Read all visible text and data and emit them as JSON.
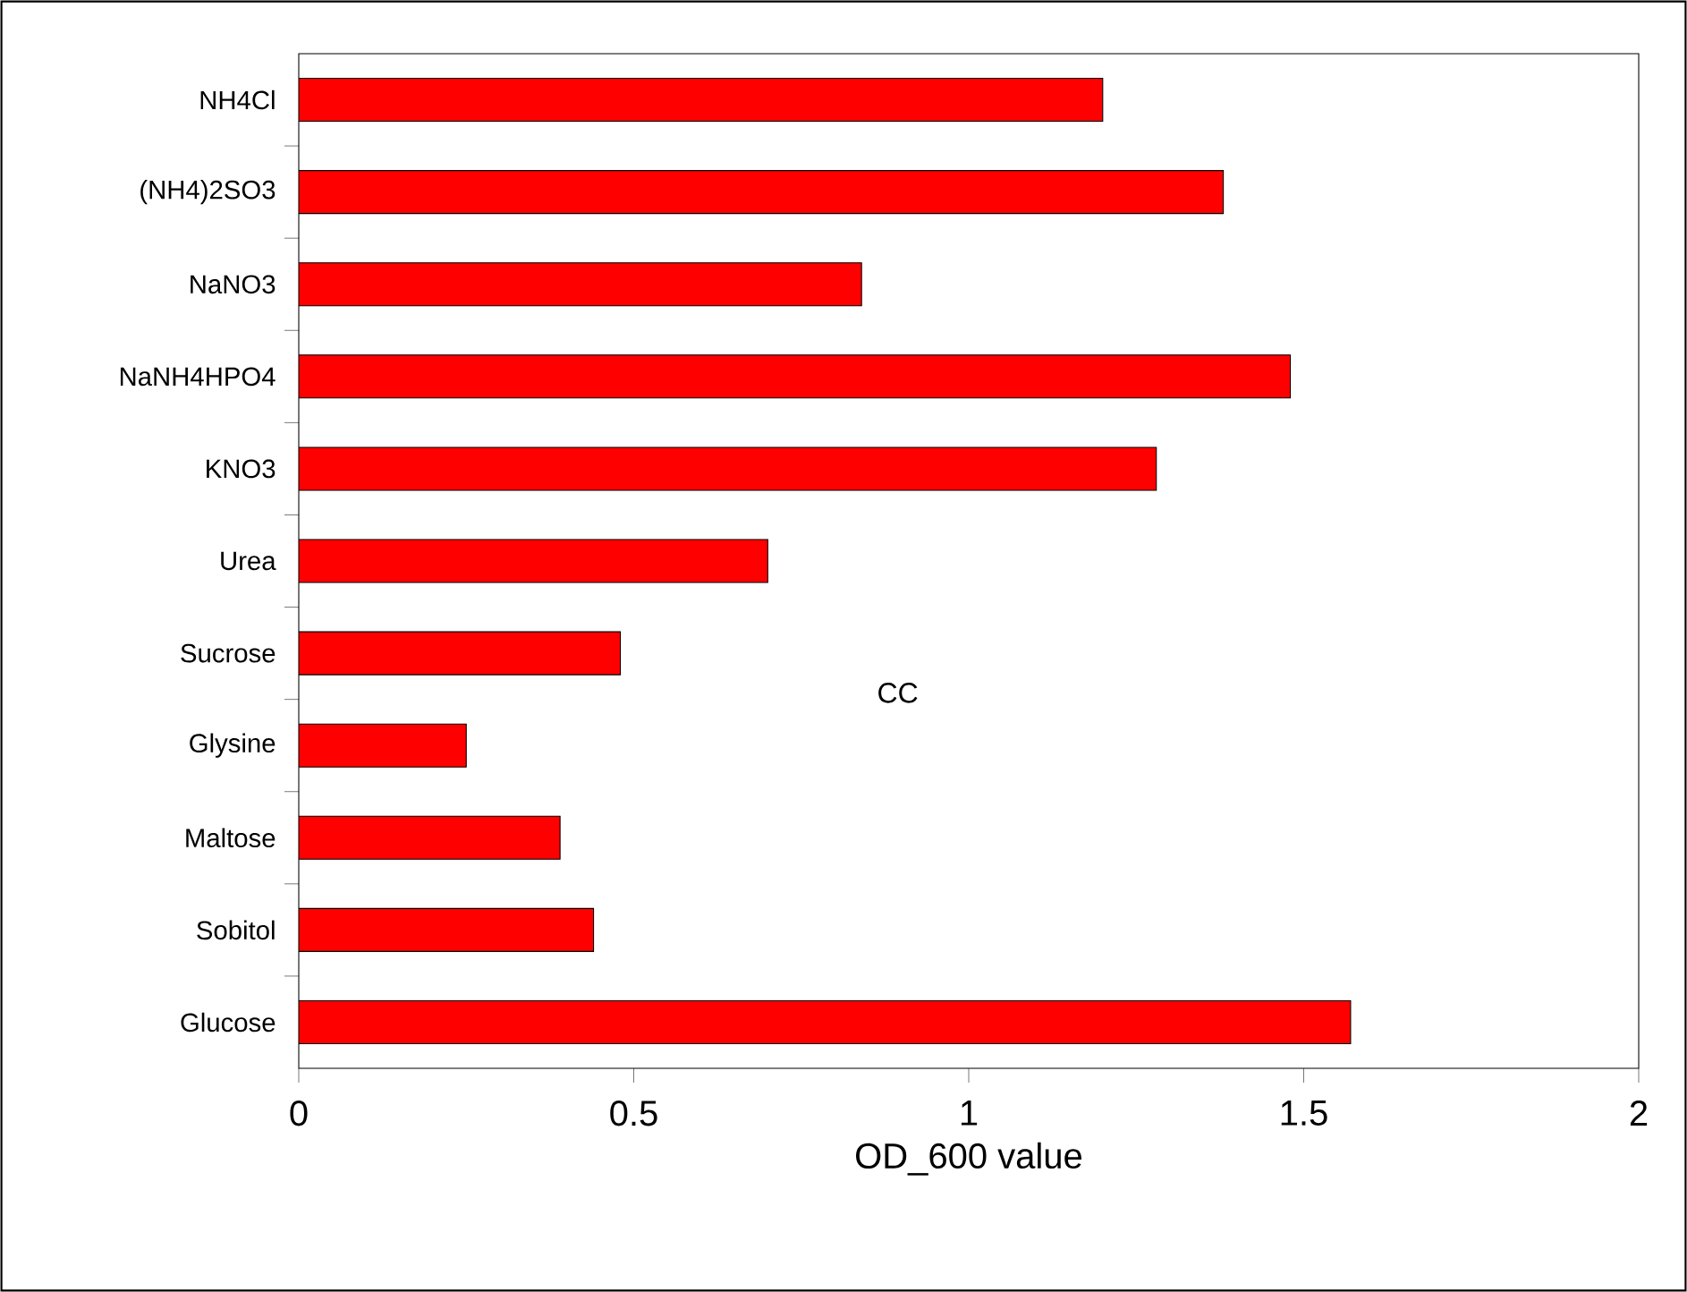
{
  "chart_data": {
    "type": "bar",
    "orientation": "horizontal",
    "xlabel": "OD_600 value",
    "categories": [
      "NH4Cl",
      "(NH4)2SO3",
      "NaNO3",
      "NaNH4HPO4",
      "KNO3",
      "Urea",
      "Sucrose",
      "Glysine",
      "Maltose",
      "Sobitol",
      "Glucose"
    ],
    "values": [
      1.2,
      1.38,
      0.84,
      1.48,
      1.28,
      0.7,
      0.48,
      0.25,
      0.39,
      0.44,
      1.57
    ],
    "color": "#ff0000",
    "xlim": [
      0,
      2
    ],
    "xticks": [
      0,
      0.5,
      1,
      1.5,
      2
    ],
    "annotations": [
      "CC"
    ]
  }
}
